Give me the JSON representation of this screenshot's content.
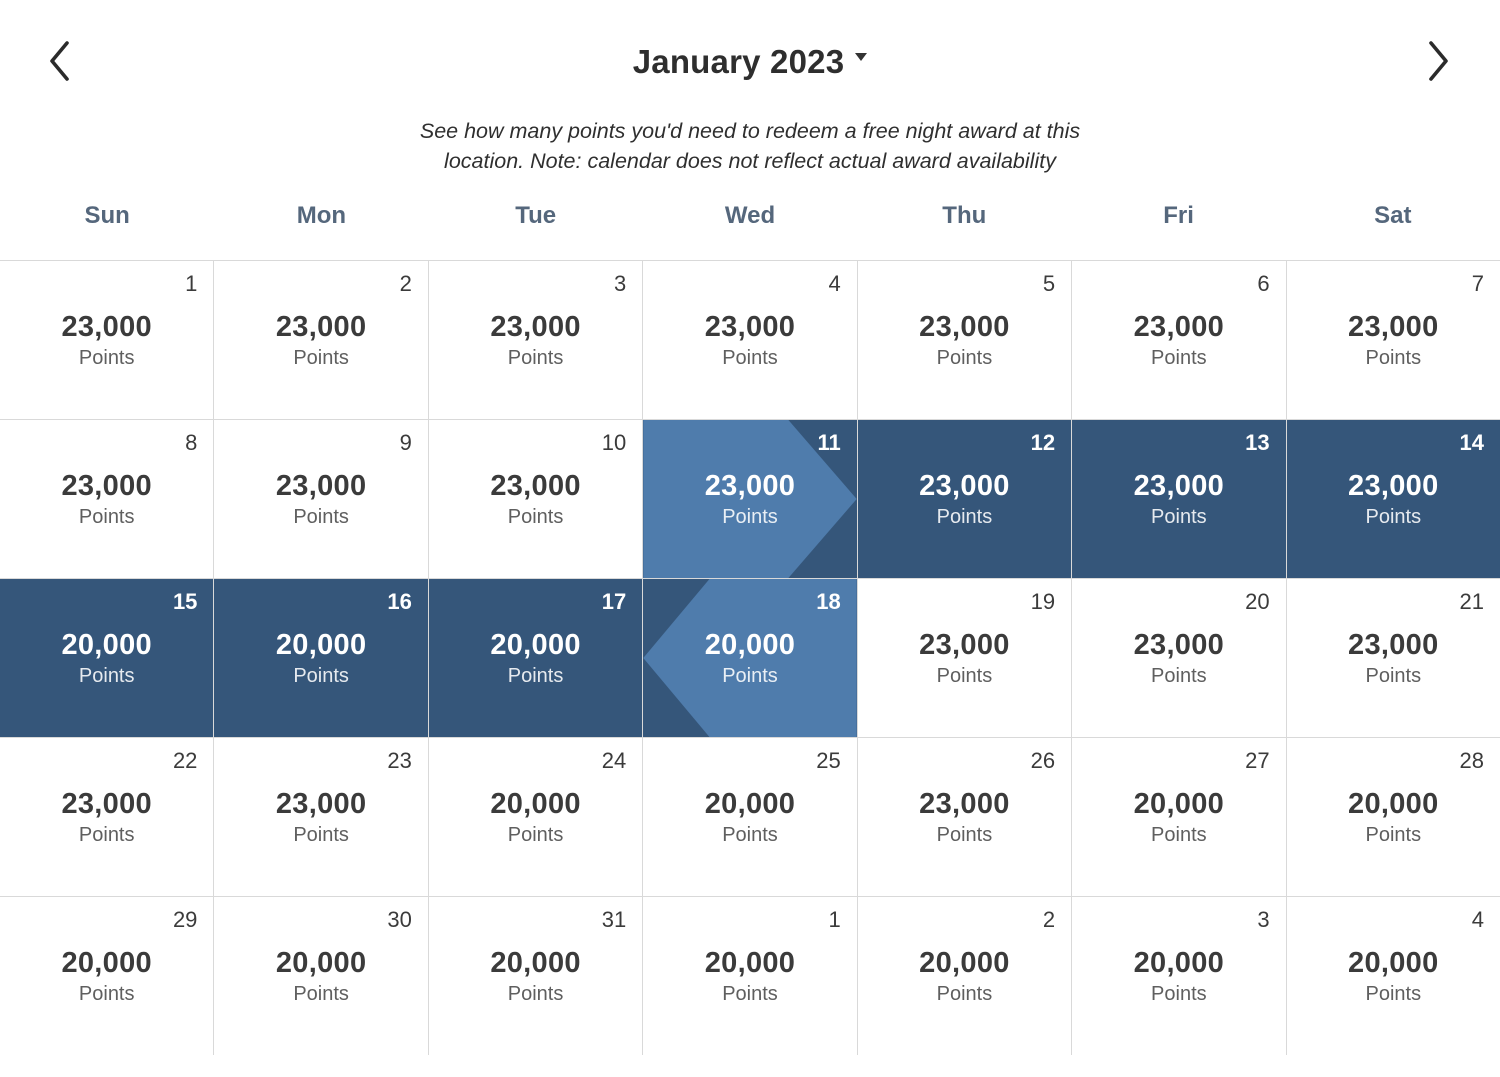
{
  "header": {
    "title": "January 2023"
  },
  "note": "See how many points you'd need to redeem a free night award at this location. Note: calendar does not reflect actual award availability",
  "weekdays": [
    "Sun",
    "Mon",
    "Tue",
    "Wed",
    "Thu",
    "Fri",
    "Sat"
  ],
  "unit_label": "Points",
  "colors": {
    "range_dark": "#35567a",
    "range_light": "#4f7cac",
    "weekday_text": "#55677c",
    "grid_line": "#d9d9d9"
  },
  "cells": [
    {
      "day": "1",
      "points": "23,000",
      "variant": "default"
    },
    {
      "day": "2",
      "points": "23,000",
      "variant": "default"
    },
    {
      "day": "3",
      "points": "23,000",
      "variant": "default"
    },
    {
      "day": "4",
      "points": "23,000",
      "variant": "default"
    },
    {
      "day": "5",
      "points": "23,000",
      "variant": "default"
    },
    {
      "day": "6",
      "points": "23,000",
      "variant": "default"
    },
    {
      "day": "7",
      "points": "23,000",
      "variant": "default"
    },
    {
      "day": "8",
      "points": "23,000",
      "variant": "default"
    },
    {
      "day": "9",
      "points": "23,000",
      "variant": "default"
    },
    {
      "day": "10",
      "points": "23,000",
      "variant": "default"
    },
    {
      "day": "11",
      "points": "23,000",
      "variant": "range-start"
    },
    {
      "day": "12",
      "points": "23,000",
      "variant": "range"
    },
    {
      "day": "13",
      "points": "23,000",
      "variant": "range"
    },
    {
      "day": "14",
      "points": "23,000",
      "variant": "range"
    },
    {
      "day": "15",
      "points": "20,000",
      "variant": "range"
    },
    {
      "day": "16",
      "points": "20,000",
      "variant": "range"
    },
    {
      "day": "17",
      "points": "20,000",
      "variant": "range"
    },
    {
      "day": "18",
      "points": "20,000",
      "variant": "range-end"
    },
    {
      "day": "19",
      "points": "23,000",
      "variant": "default"
    },
    {
      "day": "20",
      "points": "23,000",
      "variant": "default"
    },
    {
      "day": "21",
      "points": "23,000",
      "variant": "default"
    },
    {
      "day": "22",
      "points": "23,000",
      "variant": "default"
    },
    {
      "day": "23",
      "points": "23,000",
      "variant": "default"
    },
    {
      "day": "24",
      "points": "20,000",
      "variant": "default"
    },
    {
      "day": "25",
      "points": "20,000",
      "variant": "default"
    },
    {
      "day": "26",
      "points": "23,000",
      "variant": "default"
    },
    {
      "day": "27",
      "points": "20,000",
      "variant": "default"
    },
    {
      "day": "28",
      "points": "20,000",
      "variant": "default"
    },
    {
      "day": "29",
      "points": "20,000",
      "variant": "default"
    },
    {
      "day": "30",
      "points": "20,000",
      "variant": "default"
    },
    {
      "day": "31",
      "points": "20,000",
      "variant": "default"
    },
    {
      "day": "1",
      "points": "20,000",
      "variant": "default"
    },
    {
      "day": "2",
      "points": "20,000",
      "variant": "default"
    },
    {
      "day": "3",
      "points": "20,000",
      "variant": "default"
    },
    {
      "day": "4",
      "points": "20,000",
      "variant": "default"
    }
  ]
}
